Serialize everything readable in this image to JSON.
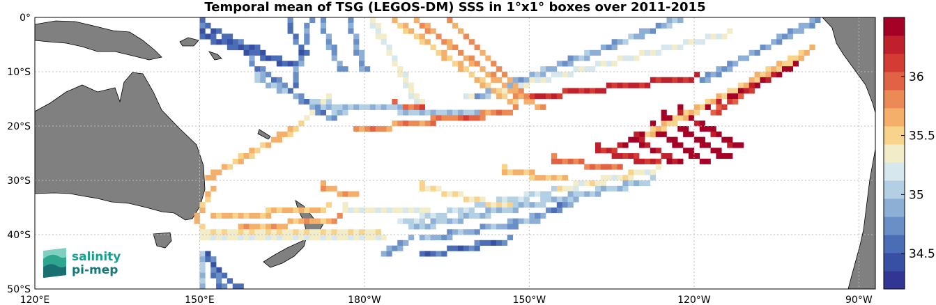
{
  "title": "Temporal mean of TSG (LEGOS-DM) SSS in 1°x1° boxes over 2011-2015",
  "map": {
    "lon_range": [
      120,
      273
    ],
    "lat_range": [
      -50,
      0
    ],
    "x_ticks": [
      {
        "lon": 120,
        "label": "120°E"
      },
      {
        "lon": 150,
        "label": "150°E"
      },
      {
        "lon": 180,
        "label": "180°W"
      },
      {
        "lon": 210,
        "label": "150°W"
      },
      {
        "lon": 240,
        "label": "120°W"
      },
      {
        "lon": 270,
        "label": "90°W"
      }
    ],
    "y_ticks": [
      {
        "lat": 0,
        "label": "0°"
      },
      {
        "lat": -10,
        "label": "10°S"
      },
      {
        "lat": -20,
        "label": "20°S"
      },
      {
        "lat": -30,
        "label": "30°S"
      },
      {
        "lat": -40,
        "label": "40°S"
      },
      {
        "lat": -50,
        "label": "50°S"
      }
    ],
    "gridlines": true,
    "land_color": "#808080",
    "track_cells": [
      {
        "from": [
          150,
          -1
        ],
        "to": [
          160,
          -6
        ],
        "value": 34.6
      },
      {
        "from": [
          150,
          -3
        ],
        "to": [
          167,
          -9
        ],
        "value": 34.55
      },
      {
        "from": [
          166,
          -1
        ],
        "to": [
          169,
          -7
        ],
        "value": 34.6
      },
      {
        "from": [
          170,
          -1
        ],
        "to": [
          167,
          -13
        ],
        "value": 34.75
      },
      {
        "from": [
          172,
          -1
        ],
        "to": [
          176,
          -10
        ],
        "value": 34.8
      },
      {
        "from": [
          177,
          0
        ],
        "to": [
          180,
          -10
        ],
        "value": 34.85
      },
      {
        "from": [
          181,
          0
        ],
        "to": [
          190,
          -16
        ],
        "value": 35.3
      },
      {
        "from": [
          185,
          0
        ],
        "to": [
          207,
          -16
        ],
        "value": 35.6
      },
      {
        "from": [
          189,
          0
        ],
        "to": [
          210,
          -16
        ],
        "value": 35.7
      },
      {
        "from": [
          195,
          0
        ],
        "to": [
          212,
          -17
        ],
        "value": 35.75
      },
      {
        "from": [
          159,
          -8
        ],
        "to": [
          174,
          -19
        ],
        "value": 34.75
      },
      {
        "from": [
          160,
          -11
        ],
        "to": [
          176,
          -18
        ],
        "value": 35.0
      },
      {
        "from": [
          173,
          -16
        ],
        "to": [
          200,
          -18
        ],
        "value": 35.0
      },
      {
        "from": [
          185,
          -16
        ],
        "to": [
          201,
          -19
        ],
        "value": 35.95
      },
      {
        "from": [
          178,
          -21
        ],
        "to": [
          207,
          -17
        ],
        "value": 35.8
      },
      {
        "from": [
          208,
          -15
        ],
        "to": [
          240,
          -11
        ],
        "value": 36.2
      },
      {
        "from": [
          200,
          -15
        ],
        "to": [
          238,
          0
        ],
        "value": 34.9
      },
      {
        "from": [
          198,
          -15
        ],
        "to": [
          246,
          -3
        ],
        "value": 35.25
      },
      {
        "from": [
          241,
          -12
        ],
        "to": [
          263,
          0
        ],
        "value": 34.85
      },
      {
        "from": [
          231,
          -22
        ],
        "to": [
          261,
          -6
        ],
        "value": 35.55
      },
      {
        "from": [
          226,
          -24
        ],
        "to": [
          258,
          -9
        ],
        "value": 36.35
      },
      {
        "from": [
          243,
          -18
        ],
        "to": [
          255,
          -10
        ],
        "value": 36.0
      },
      {
        "from": [
          232,
          -20
        ],
        "to": [
          242,
          -27
        ],
        "value": 36.45
      },
      {
        "from": [
          234,
          -18
        ],
        "to": [
          246,
          -26
        ],
        "value": 36.45
      },
      {
        "from": [
          237,
          -17
        ],
        "to": [
          248,
          -24
        ],
        "value": 36.4
      },
      {
        "from": [
          229,
          -22
        ],
        "to": [
          237,
          -27
        ],
        "value": 36.3
      },
      {
        "from": [
          222,
          -24
        ],
        "to": [
          233,
          -27
        ],
        "value": 36.2
      },
      {
        "from": [
          214,
          -26
        ],
        "to": [
          226,
          -28
        ],
        "value": 35.9
      },
      {
        "from": [
          205,
          -28
        ],
        "to": [
          216,
          -30
        ],
        "value": 35.6
      },
      {
        "from": [
          190,
          -31
        ],
        "to": [
          206,
          -35
        ],
        "value": 35.45
      },
      {
        "from": [
          176,
          -35
        ],
        "to": [
          191,
          -36
        ],
        "value": 35.3
      },
      {
        "from": [
          172,
          -31
        ],
        "to": [
          178,
          -33
        ],
        "value": 35.7
      },
      {
        "from": [
          186,
          -38
        ],
        "to": [
          214,
          -32
        ],
        "value": 35.1
      },
      {
        "from": [
          214,
          -32
        ],
        "to": [
          233,
          -28
        ],
        "value": 35.35
      },
      {
        "from": [
          188,
          -39
        ],
        "to": [
          232,
          -30
        ],
        "value": 35.0
      },
      {
        "from": [
          190,
          -41
        ],
        "to": [
          212,
          -37
        ],
        "value": 34.9
      },
      {
        "from": [
          205,
          -39
        ],
        "to": [
          218,
          -34
        ],
        "value": 34.75
      },
      {
        "from": [
          190,
          -44
        ],
        "to": [
          206,
          -41
        ],
        "value": 34.6
      },
      {
        "from": [
          183,
          -44
        ],
        "to": [
          188,
          -41
        ],
        "value": 34.8
      },
      {
        "from": [
          151,
          -30
        ],
        "to": [
          168,
          -20
        ],
        "value": 35.6
      },
      {
        "from": [
          168,
          -20
        ],
        "to": [
          173,
          -15
        ],
        "value": 35.45
      },
      {
        "from": [
          149,
          -38
        ],
        "to": [
          152,
          -32
        ],
        "value": 35.6
      },
      {
        "from": [
          157,
          -39
        ],
        "to": [
          175,
          -37
        ],
        "value": 35.65
      },
      {
        "from": [
          152,
          -37
        ],
        "to": [
          173,
          -35
        ],
        "value": 35.6
      },
      {
        "from": [
          150,
          -39
        ],
        "to": [
          182,
          -40
        ],
        "value": 35.4
      },
      {
        "from": [
          150,
          -40
        ],
        "to": [
          183,
          -41
        ],
        "value": 35.3
      },
      {
        "from": [
          150,
          -44
        ],
        "to": [
          150,
          -50
        ],
        "value": 35.0
      },
      {
        "from": [
          151,
          -44
        ],
        "to": [
          157,
          -50
        ],
        "value": 34.55
      },
      {
        "from": [
          152,
          -45
        ],
        "to": [
          154,
          -50
        ],
        "value": 34.7
      }
    ]
  },
  "colorbar": {
    "vmin": 34.2,
    "vmax": 36.5,
    "ticks": [
      {
        "value": 34.5,
        "label": "34.5"
      },
      {
        "value": 35,
        "label": "35"
      },
      {
        "value": 35.5,
        "label": "35.5"
      },
      {
        "value": 36,
        "label": "36"
      }
    ],
    "colors": [
      "#313695",
      "#3850a3",
      "#4a6db6",
      "#6a8fc7",
      "#8dafd6",
      "#b3cfe4",
      "#d6e7ed",
      "#f2edc8",
      "#f8d38c",
      "#f4b06a",
      "#ec8a55",
      "#e16244",
      "#d43b32",
      "#c0202b",
      "#a50026"
    ]
  },
  "logo": {
    "line1": "salinity",
    "line2": "pi-mep"
  }
}
